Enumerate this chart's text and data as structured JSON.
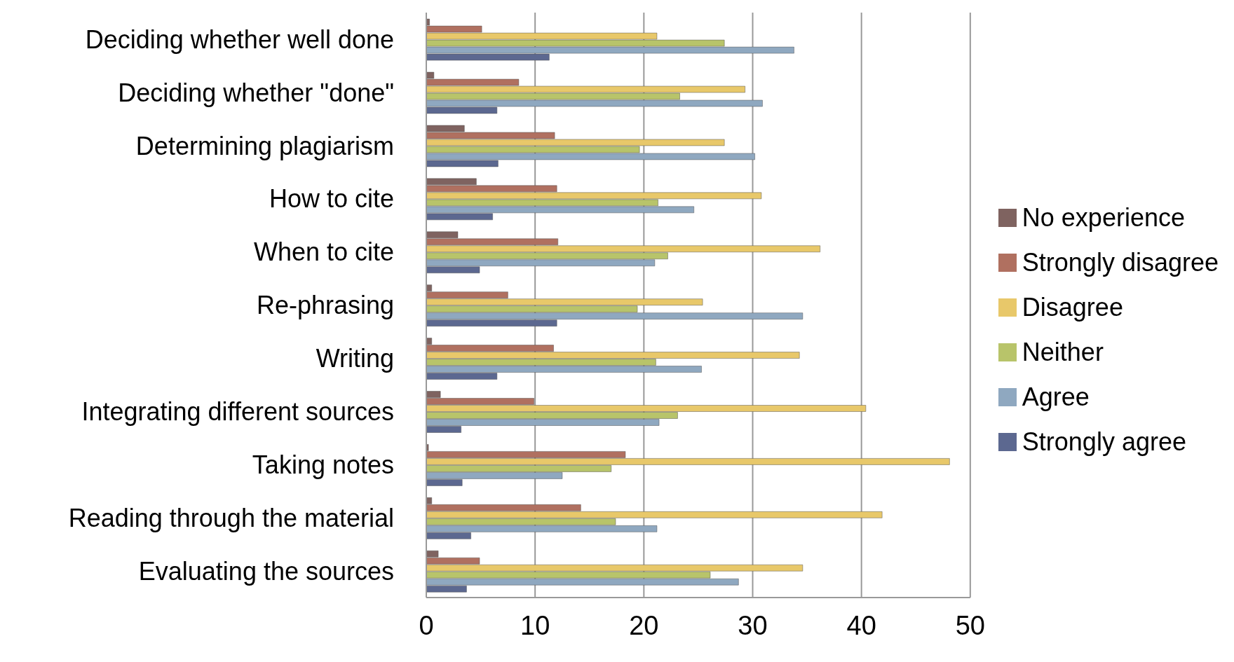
{
  "chart_data": {
    "type": "bar",
    "orientation": "horizontal",
    "categories": [
      "Deciding whether well done",
      "Deciding whether \"done\"",
      "Determining plagiarism",
      "How to cite",
      "When to cite",
      "Re-phrasing",
      "Writing",
      "Integrating different sources",
      "Taking notes",
      "Reading through the material",
      "Evaluating the sources"
    ],
    "series": [
      {
        "name": "No experience",
        "color": "#7f6360",
        "values": [
          0.3,
          0.7,
          3.5,
          4.6,
          2.9,
          0.5,
          0.5,
          1.3,
          0.2,
          0.5,
          1.1
        ]
      },
      {
        "name": "Strongly disagree",
        "color": "#b07060",
        "values": [
          5.1,
          8.5,
          11.8,
          12,
          12.1,
          7.5,
          11.7,
          9.9,
          18.3,
          14.2,
          4.9
        ]
      },
      {
        "name": "Disagree",
        "color": "#e8c86a",
        "values": [
          21.2,
          29.3,
          27.4,
          30.8,
          36.2,
          25.4,
          34.3,
          40.4,
          48.1,
          41.9,
          34.6
        ]
      },
      {
        "name": "Neither",
        "color": "#b8c46a",
        "values": [
          27.4,
          23.3,
          19.6,
          21.3,
          22.2,
          19.4,
          21.1,
          23.1,
          17,
          17.4,
          26.1
        ]
      },
      {
        "name": "Agree",
        "color": "#8fa8c0",
        "values": [
          33.8,
          30.9,
          30.2,
          24.6,
          21,
          34.6,
          25.3,
          21.4,
          12.5,
          21.2,
          28.7
        ]
      },
      {
        "name": "Strongly agree",
        "color": "#5c6890",
        "values": [
          11.3,
          6.5,
          6.6,
          6.1,
          4.9,
          12,
          6.5,
          3.2,
          3.3,
          4.1,
          3.7
        ]
      }
    ],
    "xlim": [
      0,
      50
    ],
    "xticks": [
      0,
      10,
      20,
      30,
      40,
      50
    ],
    "grid": "x",
    "legend": "right"
  }
}
